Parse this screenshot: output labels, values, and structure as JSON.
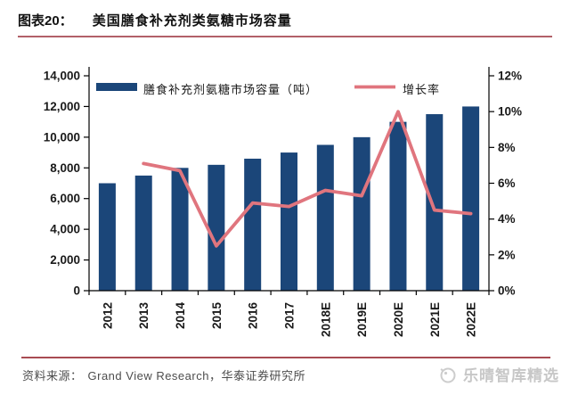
{
  "header": {
    "figure_label": "图表20：",
    "title": "美国膳食补充剂类氨糖市场容量"
  },
  "footer": {
    "source_label": "资料来源：",
    "source_text": "Grand View Research，华泰证券研究所",
    "watermark": "乐晴智库精选"
  },
  "colors": {
    "bar": "#1B4679",
    "line": "#E0757E",
    "axis": "#000000",
    "tick_text": "#1a1a1a",
    "title_rule": "#B26068",
    "footer_rule": "#A84B52",
    "watermark": "#c7c7c7"
  },
  "chart_data": {
    "type": "bar",
    "title": "美国膳食补充剂类氨糖市场容量",
    "categories": [
      "2012",
      "2013",
      "2014",
      "2015",
      "2016",
      "2017",
      "2018E",
      "2019E",
      "2020E",
      "2021E",
      "2022E"
    ],
    "series": [
      {
        "name": "膳食补充剂氨糖市场容量（吨）",
        "type": "bar",
        "axis": "left",
        "values": [
          7000,
          7500,
          8000,
          8200,
          8600,
          9000,
          9500,
          10000,
          11000,
          11500,
          12000
        ]
      },
      {
        "name": "增长率",
        "type": "line",
        "axis": "right",
        "values": [
          null,
          7.1,
          6.7,
          2.5,
          4.9,
          4.7,
          5.6,
          5.3,
          10.0,
          4.5,
          4.3
        ]
      }
    ],
    "left_axis": {
      "min": 0,
      "max": 14000,
      "step": 2000,
      "tick_labels": [
        "0",
        "2,000",
        "4,000",
        "6,000",
        "8,000",
        "10,000",
        "12,000",
        "14,000"
      ]
    },
    "right_axis": {
      "min": 0,
      "max": 12,
      "step": 2,
      "tick_labels": [
        "0%",
        "2%",
        "4%",
        "6%",
        "8%",
        "10%",
        "12%"
      ]
    },
    "legend_position": "top",
    "grid": false
  }
}
